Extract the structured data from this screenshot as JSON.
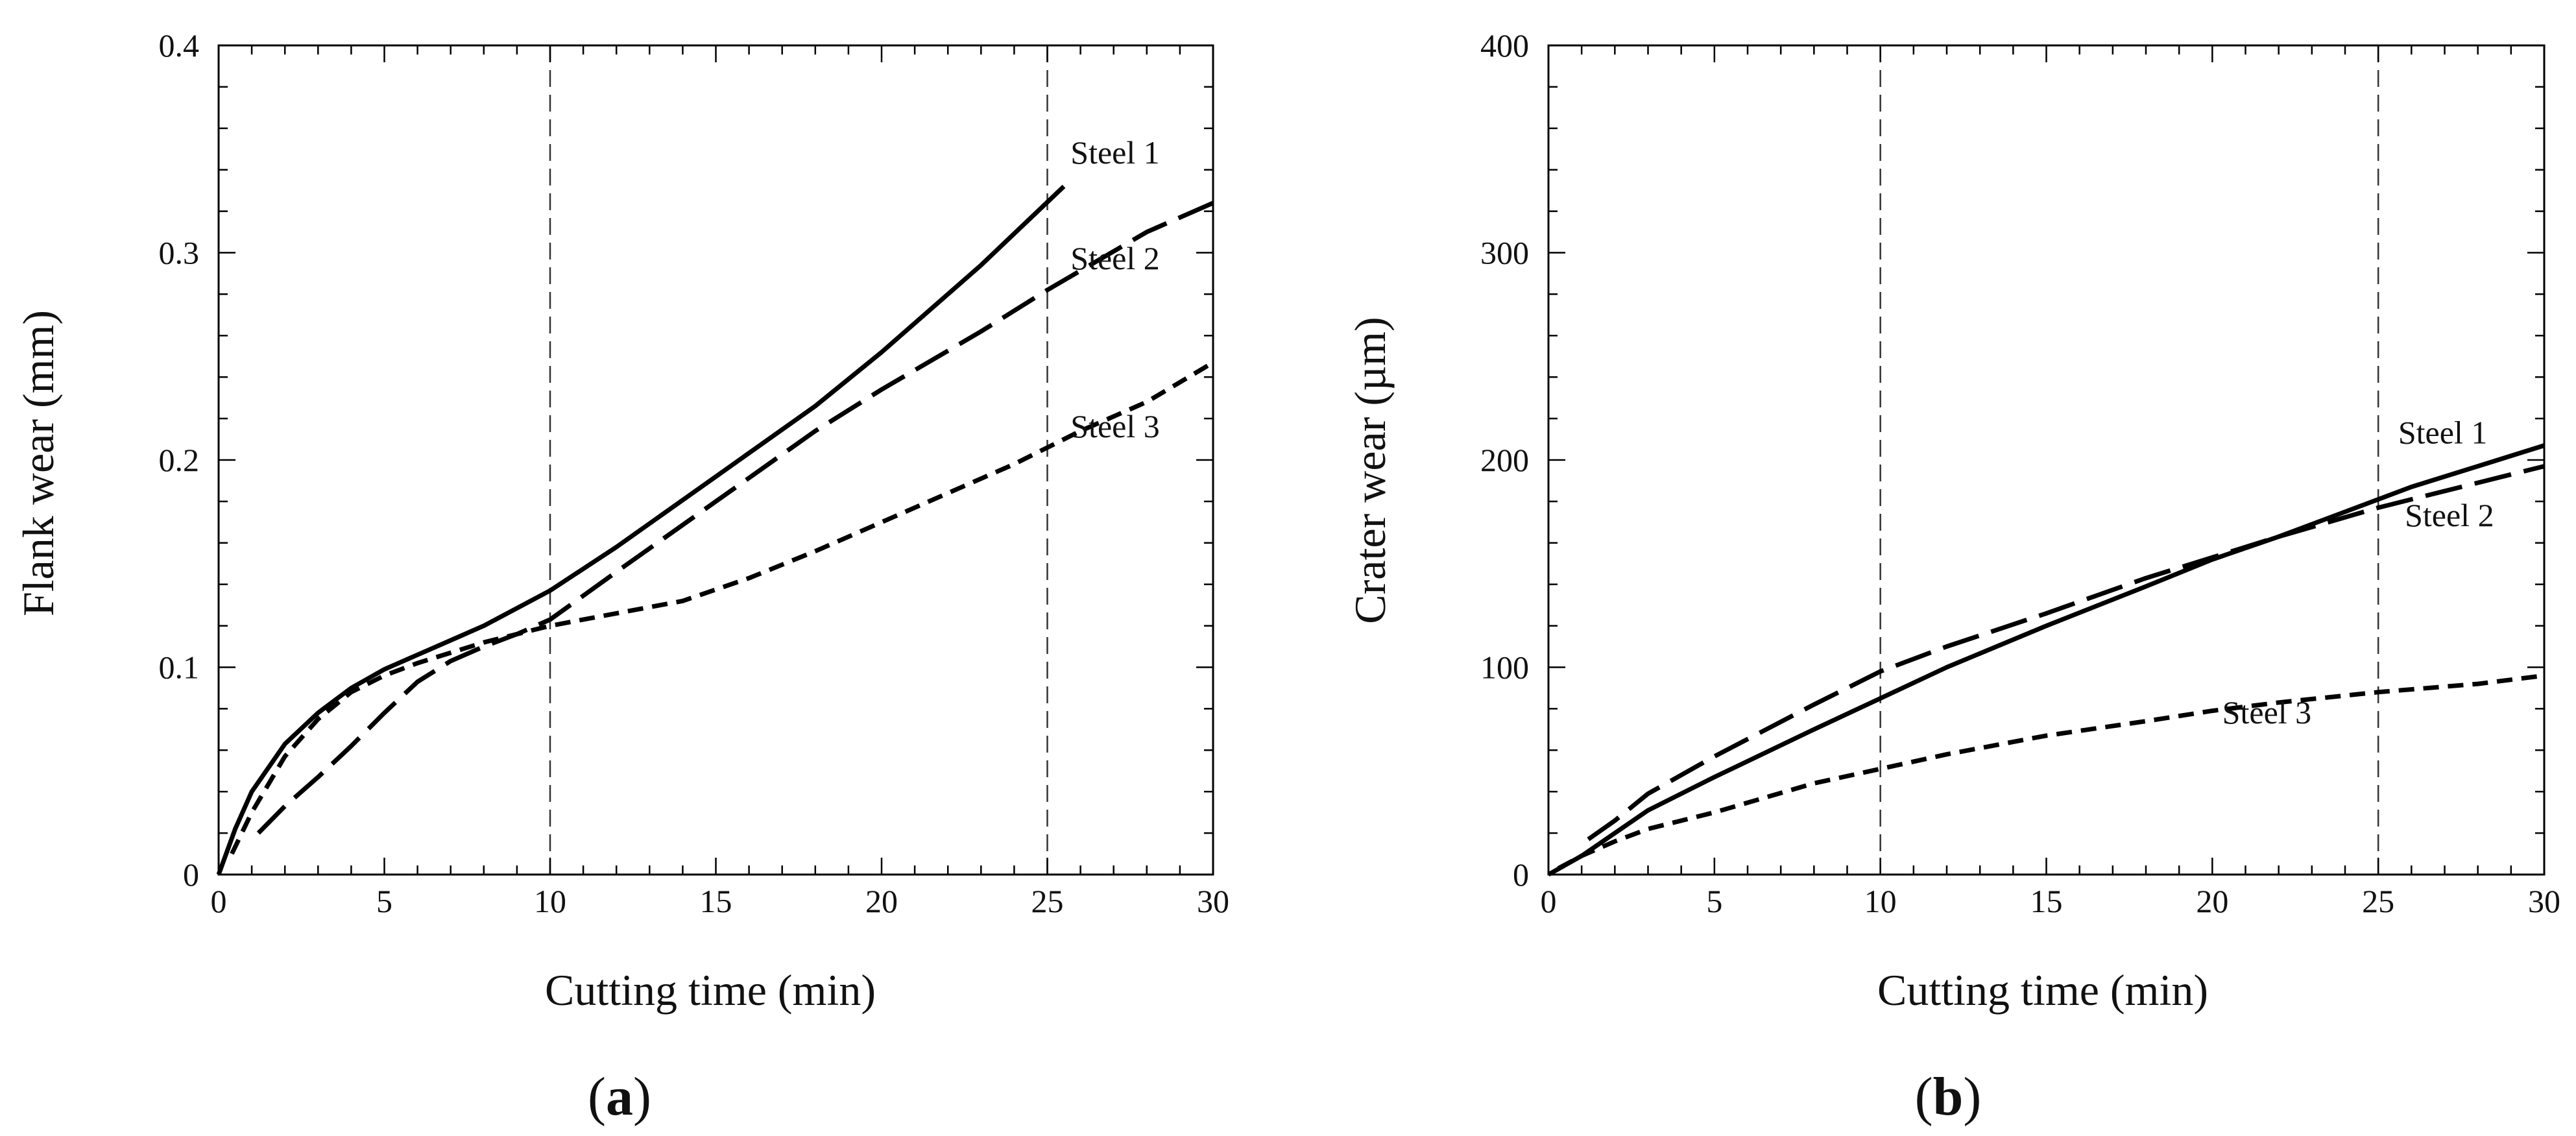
{
  "chart_data": [
    {
      "type": "line",
      "panel": "a",
      "xlabel": "Cutting time   (min)",
      "ylabel": "Flank wear   (mm)",
      "xlim": [
        0,
        30
      ],
      "ylim": [
        0,
        0.4
      ],
      "x_ticks": [
        0,
        5,
        10,
        15,
        20,
        25,
        30
      ],
      "y_ticks": [
        0,
        0.1,
        0.2,
        0.3,
        0.4
      ],
      "x_tick_labels": [
        "0",
        "5",
        "10",
        "15",
        "20",
        "25",
        "30"
      ],
      "y_tick_labels": [
        "0",
        "0.1",
        "0.2",
        "0.3",
        "0.4"
      ],
      "reference_lines_x": [
        10,
        25
      ],
      "grid": false,
      "series": [
        {
          "name": "Steel 1",
          "style": "solid",
          "label_at": [
            25.7,
            0.343
          ],
          "points": [
            [
              0,
              0
            ],
            [
              0.5,
              0.022
            ],
            [
              1,
              0.04
            ],
            [
              2,
              0.063
            ],
            [
              3,
              0.078
            ],
            [
              4,
              0.09
            ],
            [
              5,
              0.099
            ],
            [
              6,
              0.106
            ],
            [
              7,
              0.113
            ],
            [
              8,
              0.12
            ],
            [
              10,
              0.137
            ],
            [
              12,
              0.158
            ],
            [
              15,
              0.192
            ],
            [
              18,
              0.226
            ],
            [
              20,
              0.252
            ],
            [
              23,
              0.294
            ],
            [
              25.5,
              0.332
            ]
          ]
        },
        {
          "name": "Steel 2",
          "style": "long-dash",
          "label_at": [
            25.7,
            0.292
          ],
          "points": [
            [
              1.2,
              0.02
            ],
            [
              2,
              0.033
            ],
            [
              3,
              0.047
            ],
            [
              4,
              0.062
            ],
            [
              5,
              0.078
            ],
            [
              6,
              0.093
            ],
            [
              7,
              0.103
            ],
            [
              8,
              0.11
            ],
            [
              9,
              0.116
            ],
            [
              10,
              0.123
            ],
            [
              12,
              0.146
            ],
            [
              15,
              0.18
            ],
            [
              18,
              0.214
            ],
            [
              20,
              0.234
            ],
            [
              23,
              0.262
            ],
            [
              25,
              0.282
            ],
            [
              28,
              0.31
            ],
            [
              30,
              0.324
            ]
          ]
        },
        {
          "name": "Steel 3",
          "style": "short-dash",
          "label_at": [
            25.7,
            0.211
          ],
          "points": [
            [
              0.4,
              0.01
            ],
            [
              1,
              0.03
            ],
            [
              2,
              0.057
            ],
            [
              3,
              0.075
            ],
            [
              4,
              0.088
            ],
            [
              5,
              0.096
            ],
            [
              6,
              0.102
            ],
            [
              7,
              0.107
            ],
            [
              8,
              0.112
            ],
            [
              10,
              0.12
            ],
            [
              12,
              0.126
            ],
            [
              14,
              0.132
            ],
            [
              16,
              0.143
            ],
            [
              18,
              0.156
            ],
            [
              20,
              0.17
            ],
            [
              22,
              0.184
            ],
            [
              24,
              0.198
            ],
            [
              26,
              0.214
            ],
            [
              28,
              0.228
            ],
            [
              30,
              0.247
            ]
          ]
        }
      ]
    },
    {
      "type": "line",
      "panel": "b",
      "xlabel": "Cutting time   (min)",
      "ylabel": "Crater wear   (µm)",
      "xlim": [
        0,
        30
      ],
      "ylim": [
        0,
        400
      ],
      "x_ticks": [
        0,
        5,
        10,
        15,
        20,
        25,
        30
      ],
      "y_ticks": [
        0,
        100,
        200,
        300,
        400
      ],
      "x_tick_labels": [
        "0",
        "5",
        "10",
        "15",
        "20",
        "25",
        "30"
      ],
      "y_tick_labels": [
        "0",
        "100",
        "200",
        "300",
        "400"
      ],
      "reference_lines_x": [
        10,
        25
      ],
      "grid": false,
      "series": [
        {
          "name": "Steel 1",
          "style": "solid",
          "label_at": [
            25.6,
            208
          ],
          "points": [
            [
              0,
              0
            ],
            [
              1,
              9
            ],
            [
              2,
              20
            ],
            [
              3,
              31
            ],
            [
              5,
              47
            ],
            [
              8,
              70
            ],
            [
              10,
              85
            ],
            [
              12,
              100
            ],
            [
              15,
              120
            ],
            [
              18,
              139
            ],
            [
              20,
              152
            ],
            [
              22,
              163
            ],
            [
              24,
              175
            ],
            [
              26,
              187
            ],
            [
              28,
              197
            ],
            [
              30,
              207
            ]
          ]
        },
        {
          "name": "Steel 2",
          "style": "long-dash",
          "label_at": [
            25.8,
            168
          ],
          "points": [
            [
              1.2,
              17
            ],
            [
              2,
              26
            ],
            [
              3,
              39
            ],
            [
              5,
              57
            ],
            [
              8,
              82
            ],
            [
              10,
              98
            ],
            [
              12,
              110
            ],
            [
              15,
              126
            ],
            [
              18,
              143
            ],
            [
              20,
              153
            ],
            [
              22,
              163
            ],
            [
              25,
              177
            ],
            [
              28,
              189
            ],
            [
              30,
              197
            ]
          ]
        },
        {
          "name": "Steel 3",
          "style": "short-dash",
          "label_at": [
            20.3,
            73
          ],
          "points": [
            [
              0.3,
              3
            ],
            [
              1,
              9
            ],
            [
              2,
              16
            ],
            [
              3,
              22
            ],
            [
              5,
              30
            ],
            [
              8,
              44
            ],
            [
              10,
              51
            ],
            [
              12,
              58
            ],
            [
              15,
              67
            ],
            [
              18,
              74
            ],
            [
              20,
              79
            ],
            [
              22,
              83
            ],
            [
              25,
              88
            ],
            [
              28,
              92
            ],
            [
              30,
              96
            ]
          ]
        }
      ]
    }
  ],
  "panel_labels": {
    "a": {
      "open": "(",
      "letter": "a",
      "close": ")"
    },
    "b": {
      "open": "(",
      "letter": "b",
      "close": ")"
    }
  },
  "colors": {
    "line": "#000000",
    "axis": "#000000",
    "refline": "#333333"
  }
}
